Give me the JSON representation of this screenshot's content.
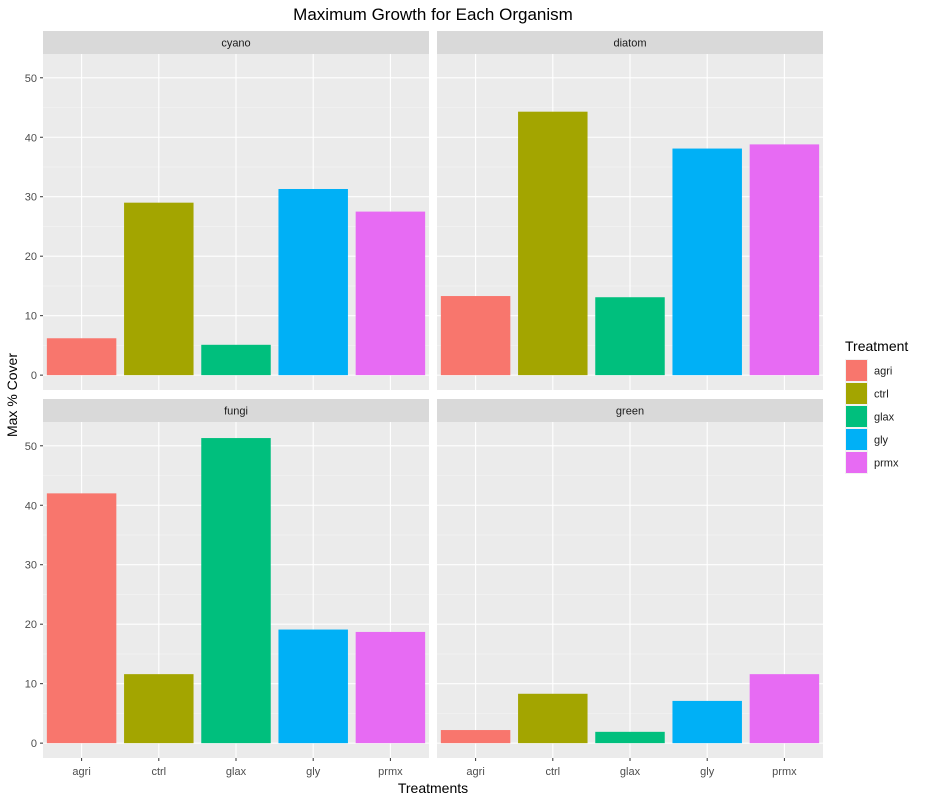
{
  "chart_data": {
    "type": "bar",
    "title": "Maximum Growth for Each Organism",
    "xlabel": "Treatments",
    "ylabel": "Max % Cover",
    "ylim": [
      -2.5,
      54
    ],
    "yticks": [
      0,
      10,
      20,
      30,
      40,
      50
    ],
    "categories": [
      "agri",
      "ctrl",
      "glax",
      "gly",
      "prmx"
    ],
    "colors": {
      "agri": "#F8766D",
      "ctrl": "#A3A500",
      "glax": "#00BF7D",
      "gly": "#00B0F6",
      "prmx": "#E76BF3"
    },
    "legend": {
      "title": "Treatment",
      "position": "right",
      "entries": [
        "agri",
        "ctrl",
        "glax",
        "gly",
        "prmx"
      ]
    },
    "grid": true,
    "panels": [
      {
        "name": "cyano",
        "values": [
          6.2,
          29.0,
          5.1,
          31.3,
          27.5
        ]
      },
      {
        "name": "diatom",
        "values": [
          13.3,
          44.3,
          13.1,
          38.1,
          38.8
        ]
      },
      {
        "name": "fungi",
        "values": [
          42.0,
          11.6,
          51.3,
          19.1,
          18.7
        ]
      },
      {
        "name": "green",
        "values": [
          2.2,
          8.3,
          1.9,
          7.1,
          11.6
        ]
      }
    ]
  }
}
